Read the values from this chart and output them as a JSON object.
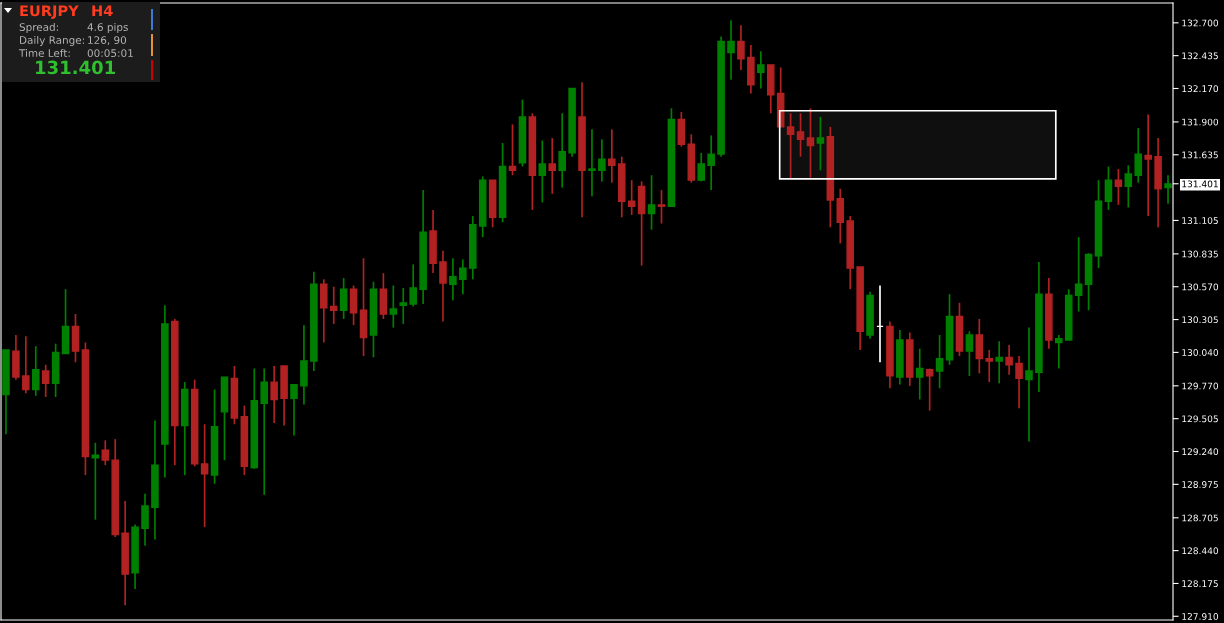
{
  "chart_data": {
    "type": "candlestick",
    "categories": [
      null,
      null,
      null,
      null,
      null,
      null,
      null,
      null,
      null,
      null,
      null,
      null,
      null,
      null,
      null,
      null,
      null,
      null,
      null,
      null,
      null,
      null,
      null,
      null,
      null,
      null,
      null,
      null,
      null,
      null,
      null,
      null,
      null,
      null,
      null,
      null,
      null,
      null,
      null,
      null,
      null,
      null,
      null,
      null,
      null,
      null,
      null,
      null,
      null,
      null,
      null,
      null,
      null,
      null,
      null,
      null,
      null,
      null,
      null,
      null,
      null,
      null,
      null,
      null,
      null,
      null,
      null,
      null,
      null,
      null,
      null,
      null,
      null,
      null,
      null,
      null,
      null,
      null,
      null,
      null,
      null,
      null,
      null,
      null,
      null,
      null,
      null,
      null,
      null,
      null,
      null,
      null,
      null,
      null,
      null,
      null,
      null,
      null,
      null,
      null,
      null,
      null,
      null,
      null,
      null,
      null,
      null,
      null,
      null,
      null,
      null,
      null,
      null,
      null,
      null,
      null,
      null,
      null
    ],
    "ohlc": [
      [
        129.7,
        130.06,
        129.38,
        130.06
      ],
      [
        130.05,
        130.18,
        129.82,
        129.84
      ],
      [
        129.85,
        130.17,
        129.71,
        129.74
      ],
      [
        129.74,
        130.09,
        129.69,
        129.9
      ],
      [
        129.89,
        129.94,
        129.68,
        129.79
      ],
      [
        129.79,
        130.11,
        129.68,
        130.04
      ],
      [
        130.03,
        130.55,
        130.03,
        130.25
      ],
      [
        130.25,
        130.35,
        129.96,
        130.05
      ],
      [
        130.06,
        130.12,
        129.05,
        129.2
      ],
      [
        129.19,
        129.31,
        128.69,
        129.21
      ],
      [
        129.25,
        129.33,
        129.13,
        129.17
      ],
      [
        129.17,
        129.34,
        128.55,
        128.57
      ],
      [
        128.58,
        128.84,
        128.0,
        128.25
      ],
      [
        128.26,
        128.65,
        128.13,
        128.63
      ],
      [
        128.62,
        128.9,
        128.48,
        128.8
      ],
      [
        128.79,
        129.49,
        128.53,
        129.13
      ],
      [
        129.3,
        130.42,
        129.03,
        130.27
      ],
      [
        130.29,
        130.31,
        129.13,
        129.45
      ],
      [
        129.45,
        129.8,
        129.05,
        129.74
      ],
      [
        129.74,
        129.82,
        129.12,
        129.14
      ],
      [
        129.14,
        129.46,
        128.63,
        129.06
      ],
      [
        129.05,
        129.74,
        128.98,
        129.44
      ],
      [
        129.56,
        129.84,
        129.17,
        129.84
      ],
      [
        129.83,
        129.93,
        129.46,
        129.51
      ],
      [
        129.52,
        129.61,
        129.05,
        129.12
      ],
      [
        129.11,
        129.91,
        129.1,
        129.65
      ],
      [
        129.63,
        129.91,
        128.89,
        129.8
      ],
      [
        129.8,
        129.93,
        129.47,
        129.66
      ],
      [
        129.93,
        129.93,
        129.45,
        129.67
      ],
      [
        129.67,
        129.78,
        129.37,
        129.78
      ],
      [
        129.77,
        130.26,
        129.62,
        129.97
      ],
      [
        129.97,
        130.69,
        129.89,
        130.59
      ],
      [
        130.59,
        130.63,
        130.12,
        130.4
      ],
      [
        130.41,
        130.57,
        130.27,
        130.38
      ],
      [
        130.38,
        130.64,
        130.31,
        130.55
      ],
      [
        130.55,
        130.58,
        130.26,
        130.36
      ],
      [
        130.38,
        130.8,
        130.01,
        130.16
      ],
      [
        130.18,
        130.61,
        130.0,
        130.55
      ],
      [
        130.55,
        130.68,
        130.31,
        130.35
      ],
      [
        130.35,
        130.58,
        130.24,
        130.39
      ],
      [
        130.42,
        130.56,
        130.27,
        130.44
      ],
      [
        130.43,
        130.75,
        130.41,
        130.56
      ],
      [
        130.55,
        131.35,
        130.43,
        131.01
      ],
      [
        131.02,
        131.19,
        130.68,
        130.76
      ],
      [
        130.77,
        130.86,
        130.29,
        130.6
      ],
      [
        130.59,
        130.8,
        130.46,
        130.65
      ],
      [
        130.63,
        130.79,
        130.51,
        130.72
      ],
      [
        130.72,
        131.14,
        130.63,
        131.07
      ],
      [
        131.06,
        131.46,
        130.97,
        131.43
      ],
      [
        131.43,
        131.43,
        131.05,
        131.13
      ],
      [
        131.13,
        131.73,
        131.09,
        131.54
      ],
      [
        131.54,
        131.88,
        131.47,
        131.51
      ],
      [
        131.57,
        132.08,
        131.54,
        131.94
      ],
      [
        131.94,
        131.97,
        131.19,
        131.47
      ],
      [
        131.47,
        131.75,
        131.25,
        131.56
      ],
      [
        131.56,
        131.77,
        131.32,
        131.51
      ],
      [
        131.51,
        131.97,
        131.37,
        131.66
      ],
      [
        131.65,
        132.17,
        131.62,
        132.17
      ],
      [
        131.94,
        132.22,
        131.13,
        131.51
      ],
      [
        131.51,
        131.84,
        131.3,
        131.52
      ],
      [
        131.51,
        131.76,
        131.42,
        131.6
      ],
      [
        131.6,
        131.84,
        131.41,
        131.55
      ],
      [
        131.56,
        131.62,
        131.13,
        131.26
      ],
      [
        131.26,
        131.43,
        131.15,
        131.22
      ],
      [
        131.38,
        131.42,
        130.74,
        131.16
      ],
      [
        131.16,
        131.47,
        131.03,
        131.23
      ],
      [
        131.23,
        131.35,
        131.08,
        131.22
      ],
      [
        131.22,
        132.01,
        131.22,
        131.92
      ],
      [
        131.92,
        131.98,
        131.7,
        131.72
      ],
      [
        131.72,
        131.8,
        131.41,
        131.43
      ],
      [
        131.43,
        131.65,
        131.42,
        131.56
      ],
      [
        131.55,
        131.79,
        131.35,
        131.64
      ],
      [
        131.64,
        132.59,
        131.62,
        132.55
      ],
      [
        132.46,
        132.72,
        132.24,
        132.55
      ],
      [
        132.55,
        132.68,
        132.32,
        132.41
      ],
      [
        132.42,
        132.52,
        132.13,
        132.2
      ],
      [
        132.3,
        132.47,
        132.17,
        132.36
      ],
      [
        132.36,
        132.36,
        131.97,
        132.12
      ],
      [
        132.13,
        132.34,
        131.86,
        131.86
      ],
      [
        131.86,
        131.97,
        131.44,
        131.8
      ],
      [
        131.82,
        131.97,
        131.62,
        131.76
      ],
      [
        131.77,
        132.01,
        131.45,
        131.71
      ],
      [
        131.73,
        131.94,
        131.51,
        131.77
      ],
      [
        131.78,
        131.86,
        131.05,
        131.27
      ],
      [
        131.28,
        131.36,
        130.92,
        131.09
      ],
      [
        131.1,
        131.14,
        130.55,
        130.72
      ],
      [
        130.73,
        130.73,
        130.06,
        130.21
      ],
      [
        130.18,
        130.53,
        130.15,
        130.5
      ],
      [
        130.25,
        130.58,
        129.96,
        130.25
      ],
      [
        130.25,
        130.29,
        129.75,
        129.85
      ],
      [
        129.84,
        130.22,
        129.78,
        130.14
      ],
      [
        130.14,
        130.2,
        129.77,
        129.84
      ],
      [
        129.84,
        130.07,
        129.66,
        129.91
      ],
      [
        129.9,
        129.91,
        129.57,
        129.85
      ],
      [
        129.89,
        130.18,
        129.75,
        129.99
      ],
      [
        129.98,
        130.51,
        129.94,
        130.33
      ],
      [
        130.33,
        130.44,
        130.01,
        130.05
      ],
      [
        130.05,
        130.21,
        129.85,
        130.18
      ],
      [
        130.18,
        130.31,
        129.87,
        129.99
      ],
      [
        129.99,
        130.06,
        129.8,
        129.97
      ],
      [
        129.97,
        130.13,
        129.79,
        130.0
      ],
      [
        130.0,
        130.1,
        129.86,
        129.94
      ],
      [
        129.95,
        130.01,
        129.59,
        129.83
      ],
      [
        129.82,
        130.24,
        129.32,
        129.89
      ],
      [
        129.88,
        130.77,
        129.72,
        130.51
      ],
      [
        130.51,
        130.64,
        130.07,
        130.14
      ],
      [
        130.12,
        130.18,
        129.91,
        130.15
      ],
      [
        130.14,
        130.55,
        130.14,
        130.5
      ],
      [
        130.5,
        130.97,
        130.37,
        130.59
      ],
      [
        130.59,
        130.84,
        130.38,
        130.83
      ],
      [
        130.82,
        131.43,
        130.72,
        131.26
      ],
      [
        131.26,
        131.54,
        131.19,
        131.43
      ],
      [
        131.43,
        131.52,
        131.23,
        131.38
      ],
      [
        131.38,
        131.55,
        131.21,
        131.48
      ],
      [
        131.47,
        131.85,
        131.41,
        131.64
      ],
      [
        131.63,
        131.96,
        131.14,
        131.6
      ],
      [
        131.62,
        131.77,
        131.05,
        131.36
      ],
      [
        131.37,
        131.47,
        131.24,
        131.4
      ]
    ],
    "colors": [
      "#008000",
      "#b22222",
      "#b22222",
      "#008000",
      "#b22222",
      "#008000",
      "#008000",
      "#b22222",
      "#b22222",
      "#008000",
      "#b22222",
      "#b22222",
      "#b22222",
      "#008000",
      "#008000",
      "#008000",
      "#008000",
      "#b22222",
      "#008000",
      "#b22222",
      "#b22222",
      "#008000",
      "#008000",
      "#b22222",
      "#b22222",
      "#008000",
      "#008000",
      "#b22222",
      "#b22222",
      "#008000",
      "#008000",
      "#008000",
      "#b22222",
      "#b22222",
      "#008000",
      "#b22222",
      "#b22222",
      "#008000",
      "#b22222",
      "#008000",
      "#008000",
      "#008000",
      "#008000",
      "#b22222",
      "#b22222",
      "#008000",
      "#008000",
      "#008000",
      "#008000",
      "#b22222",
      "#008000",
      "#b22222",
      "#008000",
      "#b22222",
      "#008000",
      "#b22222",
      "#008000",
      "#008000",
      "#b22222",
      "#008000",
      "#008000",
      "#b22222",
      "#b22222",
      "#b22222",
      "#b22222",
      "#008000",
      "#b22222",
      "#008000",
      "#b22222",
      "#b22222",
      "#008000",
      "#008000",
      "#008000",
      "#008000",
      "#b22222",
      "#b22222",
      "#008000",
      "#b22222",
      "#b22222",
      "#b22222",
      "#b22222",
      "#b22222",
      "#008000",
      "#b22222",
      "#b22222",
      "#b22222",
      "#b22222",
      "#008000",
      "#ffffff",
      "#b22222",
      "#008000",
      "#b22222",
      "#008000",
      "#b22222",
      "#008000",
      "#008000",
      "#b22222",
      "#008000",
      "#b22222",
      "#b22222",
      "#008000",
      "#b22222",
      "#b22222",
      "#008000",
      "#008000",
      "#b22222",
      "#008000",
      "#008000",
      "#008000",
      "#008000",
      "#008000",
      "#008000",
      "#b22222",
      "#008000",
      "#008000",
      "#b22222",
      "#b22222",
      "#008000"
    ],
    "ylim": [
      127.88,
      132.86
    ],
    "yticks": [
      {
        "value": 132.7,
        "label": "132.700"
      },
      {
        "value": 132.435,
        "label": "132.435"
      },
      {
        "value": 132.17,
        "label": "132.170"
      },
      {
        "value": 131.9,
        "label": "131.900"
      },
      {
        "value": 131.635,
        "label": "131.635"
      },
      {
        "value": 131.401,
        "label": "131.401"
      },
      {
        "value": 131.105,
        "label": "131.105"
      },
      {
        "value": 130.835,
        "label": "130.835"
      },
      {
        "value": 130.57,
        "label": "130.570"
      },
      {
        "value": 130.305,
        "label": "130.305"
      },
      {
        "value": 130.04,
        "label": "130.040"
      },
      {
        "value": 129.77,
        "label": "129.770"
      },
      {
        "value": 129.505,
        "label": "129.505"
      },
      {
        "value": 129.24,
        "label": "129.240"
      },
      {
        "value": 128.975,
        "label": "128.975"
      },
      {
        "value": 128.705,
        "label": "128.705"
      },
      {
        "value": 128.44,
        "label": "128.440"
      },
      {
        "value": 128.175,
        "label": "128.175"
      },
      {
        "value": 127.91,
        "label": "127.910"
      }
    ],
    "bands": [
      {
        "axis": "y",
        "from": 131.44,
        "to": 131.99,
        "color": "#ffffff"
      }
    ],
    "annotations": [
      "EURJPY",
      "H4",
      "Spread:",
      "4.6 pips",
      "Daily Range:",
      "126, 90",
      "Time Left:",
      "00:05:01",
      "131.401"
    ]
  }
}
